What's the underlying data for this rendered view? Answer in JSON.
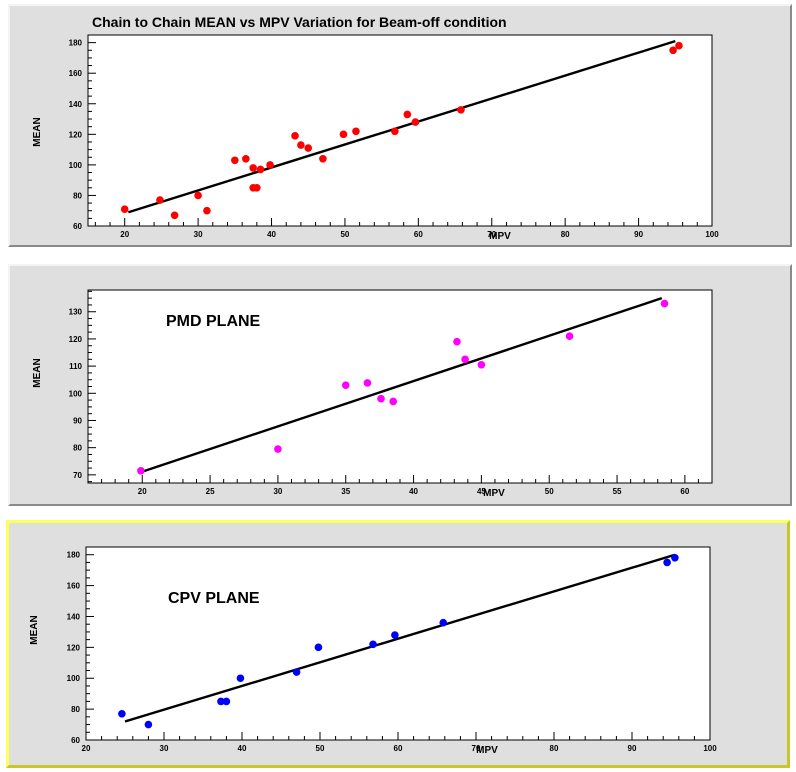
{
  "title": "Chain to Chain MEAN vs MPV Variation for Beam-off condition",
  "chart_data": [
    {
      "type": "scatter",
      "panel": "all",
      "xlabel": "MPV",
      "ylabel": "MEAN",
      "xlim": [
        15,
        100
      ],
      "ylim": [
        60,
        185
      ],
      "xticks": [
        20,
        30,
        40,
        50,
        60,
        70,
        80,
        90,
        100
      ],
      "yticks": [
        60,
        80,
        100,
        120,
        140,
        160,
        180
      ],
      "grid": false,
      "marker_color": "#ff0000",
      "points": [
        {
          "x": 20,
          "y": 71
        },
        {
          "x": 24.8,
          "y": 77
        },
        {
          "x": 26.8,
          "y": 67
        },
        {
          "x": 30,
          "y": 80
        },
        {
          "x": 31.2,
          "y": 70
        },
        {
          "x": 35,
          "y": 103
        },
        {
          "x": 36.5,
          "y": 104
        },
        {
          "x": 37.5,
          "y": 98
        },
        {
          "x": 37.5,
          "y": 85
        },
        {
          "x": 38,
          "y": 85
        },
        {
          "x": 38.5,
          "y": 97
        },
        {
          "x": 39.8,
          "y": 100
        },
        {
          "x": 43.2,
          "y": 119
        },
        {
          "x": 44,
          "y": 113
        },
        {
          "x": 45,
          "y": 111
        },
        {
          "x": 47,
          "y": 104
        },
        {
          "x": 49.8,
          "y": 120
        },
        {
          "x": 51.5,
          "y": 122
        },
        {
          "x": 56.8,
          "y": 122
        },
        {
          "x": 58.5,
          "y": 133
        },
        {
          "x": 59.6,
          "y": 128
        },
        {
          "x": 65.8,
          "y": 136
        },
        {
          "x": 94.7,
          "y": 175
        },
        {
          "x": 95.5,
          "y": 178
        }
      ],
      "fit_line": {
        "x": [
          20.5,
          95
        ],
        "y": [
          69,
          181
        ]
      }
    },
    {
      "type": "scatter",
      "panel": "PMD",
      "label": "PMD PLANE",
      "xlabel": "MPV",
      "ylabel": "MEAN",
      "xlim": [
        16,
        62
      ],
      "ylim": [
        67,
        138
      ],
      "xticks": [
        20,
        25,
        30,
        35,
        40,
        45,
        50,
        55,
        60
      ],
      "yticks": [
        70,
        80,
        90,
        100,
        110,
        120,
        130
      ],
      "grid": false,
      "marker_color": "#ff00ff",
      "points": [
        {
          "x": 19.9,
          "y": 71.5
        },
        {
          "x": 30,
          "y": 79.5
        },
        {
          "x": 35,
          "y": 103
        },
        {
          "x": 36.6,
          "y": 103.8
        },
        {
          "x": 37.6,
          "y": 98
        },
        {
          "x": 38.5,
          "y": 97
        },
        {
          "x": 43.2,
          "y": 119
        },
        {
          "x": 43.8,
          "y": 112.5
        },
        {
          "x": 45,
          "y": 110.5
        },
        {
          "x": 51.5,
          "y": 121
        },
        {
          "x": 58.5,
          "y": 133
        }
      ],
      "fit_line": {
        "x": [
          19.9,
          58.3
        ],
        "y": [
          71,
          135
        ]
      }
    },
    {
      "type": "scatter",
      "panel": "CPV",
      "label": "CPV PLANE",
      "xlabel": "MPV",
      "ylabel": "MEAN",
      "xlim": [
        20,
        100
      ],
      "ylim": [
        60,
        185
      ],
      "xticks": [
        20,
        30,
        40,
        50,
        60,
        70,
        80,
        90,
        100
      ],
      "yticks": [
        60,
        80,
        100,
        120,
        140,
        160,
        180
      ],
      "grid": false,
      "marker_color": "#0000ff",
      "points": [
        {
          "x": 24.6,
          "y": 77
        },
        {
          "x": 28,
          "y": 70
        },
        {
          "x": 37.3,
          "y": 85
        },
        {
          "x": 38,
          "y": 85
        },
        {
          "x": 39.8,
          "y": 100
        },
        {
          "x": 47,
          "y": 104
        },
        {
          "x": 49.8,
          "y": 120
        },
        {
          "x": 56.8,
          "y": 122
        },
        {
          "x": 59.6,
          "y": 128
        },
        {
          "x": 65.8,
          "y": 136
        },
        {
          "x": 94.5,
          "y": 175
        },
        {
          "x": 95.5,
          "y": 178
        }
      ],
      "fit_line": {
        "x": [
          25,
          95.5
        ],
        "y": [
          72,
          180
        ]
      }
    }
  ]
}
